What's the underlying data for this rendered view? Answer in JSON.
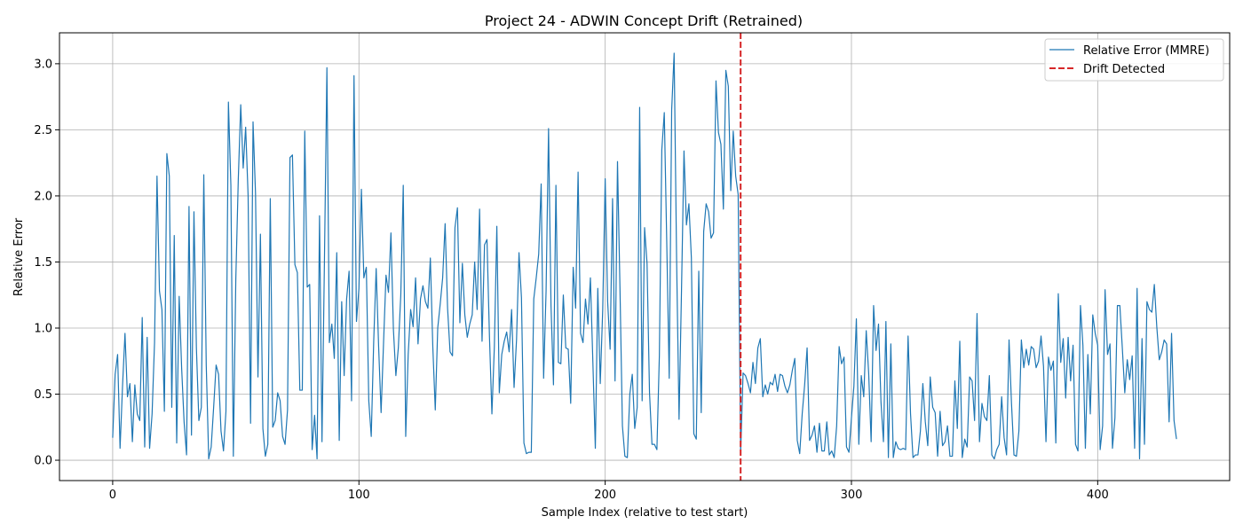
{
  "chart_data": {
    "type": "line",
    "title": "Project 24 - ADWIN Concept Drift (Retrained)",
    "xlabel": "Sample Index (relative to test start)",
    "ylabel": "Relative Error",
    "xlim": [
      -21.6,
      453.6
    ],
    "ylim": [
      -0.154,
      3.234
    ],
    "xticks": [
      0,
      100,
      200,
      300,
      400
    ],
    "xtick_labels": [
      "0",
      "100",
      "200",
      "300",
      "400"
    ],
    "yticks": [
      0.0,
      0.5,
      1.0,
      1.5,
      2.0,
      2.5,
      3.0
    ],
    "ytick_labels": [
      "0.0",
      "0.5",
      "1.0",
      "1.5",
      "2.0",
      "2.5",
      "3.0"
    ],
    "grid": true,
    "legend": {
      "position": "top-right"
    },
    "series": [
      {
        "name": "Relative Error (MMRE)",
        "color": "#1f77b4",
        "x_start": 0,
        "values": [
          0.17,
          0.65,
          0.8,
          0.09,
          0.56,
          0.96,
          0.48,
          0.58,
          0.14,
          0.57,
          0.35,
          0.3,
          1.08,
          0.1,
          0.93,
          0.09,
          0.35,
          0.89,
          2.15,
          1.28,
          1.14,
          0.37,
          2.32,
          2.15,
          0.4,
          1.7,
          0.13,
          1.24,
          0.7,
          0.29,
          0.04,
          1.92,
          0.19,
          1.88,
          0.85,
          0.3,
          0.4,
          2.16,
          0.72,
          0.01,
          0.1,
          0.4,
          0.72,
          0.65,
          0.22,
          0.07,
          0.37,
          2.71,
          2.08,
          0.03,
          1.37,
          2.12,
          2.69,
          2.21,
          2.52,
          2.0,
          0.28,
          2.56,
          2.02,
          0.63,
          1.71,
          0.24,
          0.03,
          0.12,
          1.98,
          0.25,
          0.3,
          0.51,
          0.45,
          0.18,
          0.12,
          0.38,
          2.29,
          2.31,
          1.48,
          1.42,
          0.53,
          0.53,
          2.49,
          1.31,
          1.33,
          0.08,
          0.34,
          0.01,
          1.85,
          0.14,
          1.52,
          2.97,
          0.89,
          1.03,
          0.77,
          1.57,
          0.15,
          1.2,
          0.64,
          1.22,
          1.43,
          0.45,
          2.91,
          1.05,
          1.3,
          2.05,
          1.38,
          1.46,
          0.45,
          0.18,
          0.9,
          1.45,
          0.86,
          0.36,
          0.89,
          1.4,
          1.27,
          1.72,
          0.99,
          0.64,
          0.85,
          1.25,
          2.08,
          0.18,
          0.8,
          1.14,
          1.01,
          1.38,
          0.88,
          1.22,
          1.32,
          1.2,
          1.15,
          1.53,
          0.86,
          0.38,
          1.0,
          1.18,
          1.38,
          1.79,
          1.15,
          0.82,
          0.79,
          1.76,
          1.91,
          1.04,
          1.49,
          1.1,
          0.93,
          1.03,
          1.1,
          1.5,
          1.14,
          1.9,
          0.9,
          1.63,
          1.67,
          0.94,
          0.35,
          0.86,
          1.77,
          0.51,
          0.8,
          0.9,
          0.97,
          0.82,
          1.14,
          0.55,
          0.91,
          1.57,
          1.23,
          0.13,
          0.05,
          0.06,
          0.06,
          1.22,
          1.38,
          1.56,
          2.09,
          0.62,
          1.28,
          2.51,
          1.17,
          0.57,
          2.08,
          0.74,
          0.73,
          1.25,
          0.85,
          0.84,
          0.43,
          1.46,
          1.15,
          2.18,
          0.96,
          0.89,
          1.22,
          1.03,
          1.38,
          0.74,
          0.09,
          1.3,
          0.58,
          1.14,
          2.13,
          1.2,
          0.84,
          1.98,
          0.6,
          2.26,
          1.31,
          0.26,
          0.03,
          0.02,
          0.5,
          0.65,
          0.24,
          0.4,
          2.67,
          0.45,
          1.76,
          1.49,
          0.51,
          0.12,
          0.12,
          0.08,
          0.79,
          2.35,
          2.63,
          1.65,
          0.62,
          2.65,
          3.08,
          1.52,
          0.31,
          1.29,
          2.34,
          1.78,
          1.94,
          1.53,
          0.2,
          0.16,
          1.43,
          0.36,
          1.73,
          1.94,
          1.88,
          1.68,
          1.72,
          2.87,
          2.48,
          2.39,
          1.9,
          2.95,
          2.83,
          2.04,
          2.49,
          2.15,
          2.01
        ],
        "values_after_drift": [
          0.05,
          0.66,
          0.64,
          0.58,
          0.51,
          0.74,
          0.58,
          0.85,
          0.92,
          0.48,
          0.57,
          0.5,
          0.59,
          0.57,
          0.65,
          0.52,
          0.65,
          0.64,
          0.56,
          0.51,
          0.57,
          0.68,
          0.77,
          0.15,
          0.05,
          0.35,
          0.57,
          0.85,
          0.15,
          0.19,
          0.26,
          0.06,
          0.28,
          0.07,
          0.07,
          0.29,
          0.04,
          0.07,
          0.02,
          0.26,
          0.86,
          0.73,
          0.78,
          0.1,
          0.06,
          0.32,
          0.56,
          1.07,
          0.12,
          0.64,
          0.48,
          0.98,
          0.66,
          0.14,
          1.17,
          0.83,
          1.03,
          0.44,
          0.14,
          1.05,
          0.02,
          0.88,
          0.02,
          0.14,
          0.09,
          0.08,
          0.09,
          0.08,
          0.94,
          0.35,
          0.02,
          0.04,
          0.04,
          0.22,
          0.58,
          0.29,
          0.11,
          0.63,
          0.4,
          0.36,
          0.03,
          0.37,
          0.11,
          0.14,
          0.26,
          0.03,
          0.03,
          0.6,
          0.24,
          0.9,
          0.02,
          0.16,
          0.1,
          0.63,
          0.6,
          0.3,
          1.11,
          0.14,
          0.43,
          0.33,
          0.3,
          0.64,
          0.04,
          0.01,
          0.08,
          0.12,
          0.48,
          0.17,
          0.04,
          0.91,
          0.43,
          0.04,
          0.03,
          0.22,
          0.91,
          0.7,
          0.84,
          0.72,
          0.86,
          0.84,
          0.7,
          0.75,
          0.94,
          0.71,
          0.14,
          0.78,
          0.68,
          0.75,
          0.13,
          1.26,
          0.74,
          0.92,
          0.47,
          0.93,
          0.6,
          0.87,
          0.12,
          0.07,
          1.17,
          0.87,
          0.09,
          0.8,
          0.35,
          1.1,
          0.96,
          0.87,
          0.08,
          0.26,
          1.29,
          0.8,
          0.88,
          0.09,
          0.32,
          1.17,
          1.17,
          0.85,
          0.51,
          0.76,
          0.61,
          0.79,
          0.09,
          1.3,
          0.01,
          0.92,
          0.12,
          1.2,
          1.14,
          1.12,
          1.33,
          1.01,
          0.76,
          0.82,
          0.91,
          0.88,
          0.29,
          0.96,
          0.3,
          0.16
        ]
      },
      {
        "name": "Drift Detected",
        "color": "#d62728",
        "style": "dashed",
        "x": 255
      }
    ]
  }
}
